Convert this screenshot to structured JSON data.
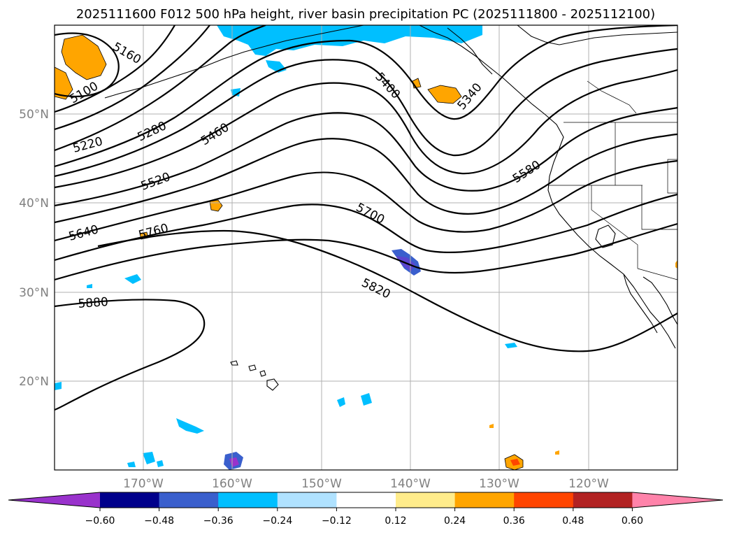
{
  "title": "2025111600 F012 500 hPa height, river basin precipitation PC (2025111800 - 2025112100)",
  "lat_labels": [
    "50°N",
    "40°N",
    "30°N",
    "20°N"
  ],
  "lon_labels": [
    "170°W",
    "160°W",
    "150°W",
    "140°W",
    "130°W",
    "120°W"
  ],
  "contour_labels": [
    "5160",
    "5100",
    "5220",
    "5280",
    "5460",
    "5520",
    "5640",
    "5760",
    "5400",
    "5340",
    "5580",
    "5700",
    "5820",
    "5880"
  ],
  "colorbar": {
    "ticks": [
      "−0.60",
      "−0.48",
      "−0.36",
      "−0.24",
      "−0.12",
      "0.12",
      "0.24",
      "0.36",
      "0.48",
      "0.60"
    ],
    "colors": [
      "#9932cc",
      "#00008b",
      "#3a5fcd",
      "#00bfff",
      "#b0e2ff",
      "#ffffff",
      "#ffec8b",
      "#ffa500",
      "#ff4500",
      "#b22222",
      "#ff83aa"
    ]
  }
}
